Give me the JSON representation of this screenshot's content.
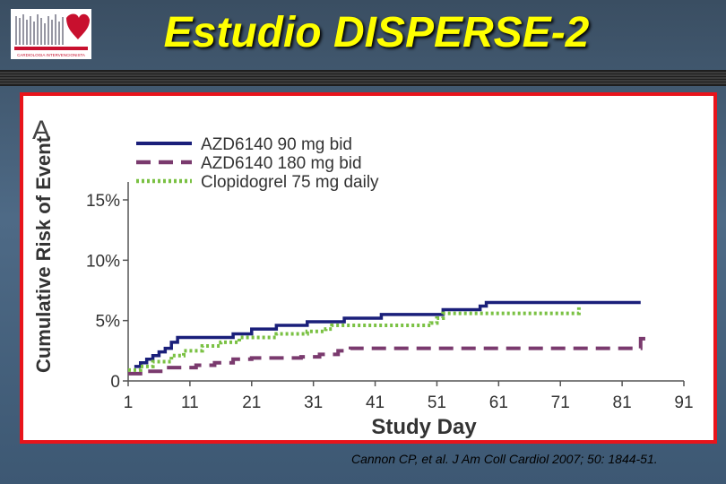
{
  "slide": {
    "title": "Estudio DISPERSE-2",
    "citation": "Cannon CP, et al. J Am Coll Cardiol 2007; 50: 1844-51."
  },
  "logo": {
    "name": "hospital-logo-icon",
    "small_text": "CARDIOLOGIA INTERVENCIONISTA"
  },
  "colors": {
    "title": "#ffff00",
    "frame_border": "#e8141b",
    "series_1": "#1a1f7a",
    "series_2": "#7a3a6e",
    "series_3": "#7ac143"
  },
  "chart_data": {
    "type": "line",
    "panel_label": "A",
    "xlabel": "Study Day",
    "ylabel": "Cumulative Risk of Event",
    "xlim": [
      1,
      91
    ],
    "ylim": [
      0,
      15
    ],
    "x_ticks": [
      1,
      11,
      21,
      31,
      41,
      51,
      61,
      71,
      81,
      91
    ],
    "y_ticks": [
      0,
      5,
      10,
      15
    ],
    "y_tick_labels": [
      "0",
      "5%",
      "10%",
      "15%"
    ],
    "legend_position": "top-left",
    "step": true,
    "series": [
      {
        "name": "AZD6140 90 mg bid",
        "color": "#1a1f7a",
        "dash": "solid",
        "points": [
          [
            2,
            1.2
          ],
          [
            3,
            1.5
          ],
          [
            4,
            1.8
          ],
          [
            5,
            2.1
          ],
          [
            6,
            2.4
          ],
          [
            7,
            2.7
          ],
          [
            8,
            3.2
          ],
          [
            9,
            3.6
          ],
          [
            18,
            3.9
          ],
          [
            21,
            4.3
          ],
          [
            25,
            4.6
          ],
          [
            30,
            4.9
          ],
          [
            36,
            5.2
          ],
          [
            42,
            5.5
          ],
          [
            52,
            5.9
          ],
          [
            58,
            6.2
          ],
          [
            59,
            6.5
          ],
          [
            84,
            6.5
          ]
        ]
      },
      {
        "name": "AZD6140 180 mg bid",
        "color": "#7a3a6e",
        "dash": "dash",
        "points": [
          [
            1,
            0.6
          ],
          [
            3,
            0.8
          ],
          [
            7,
            1.1
          ],
          [
            12,
            1.3
          ],
          [
            15,
            1.5
          ],
          [
            18,
            1.8
          ],
          [
            21,
            1.9
          ],
          [
            29,
            2.0
          ],
          [
            32,
            2.2
          ],
          [
            35,
            2.5
          ],
          [
            37,
            2.7
          ],
          [
            83,
            2.7
          ],
          [
            84,
            3.5
          ],
          [
            85,
            3.6
          ]
        ]
      },
      {
        "name": "Clopidogrel 75 mg daily",
        "color": "#7ac143",
        "dash": "dot",
        "points": [
          [
            1,
            0.9
          ],
          [
            3,
            1.2
          ],
          [
            5,
            1.6
          ],
          [
            8,
            2.1
          ],
          [
            10,
            2.5
          ],
          [
            13,
            2.9
          ],
          [
            16,
            3.2
          ],
          [
            19,
            3.6
          ],
          [
            25,
            3.9
          ],
          [
            30,
            4.1
          ],
          [
            33,
            4.3
          ],
          [
            34,
            4.6
          ],
          [
            50,
            4.8
          ],
          [
            51,
            5.2
          ],
          [
            52,
            5.6
          ],
          [
            73,
            5.6
          ],
          [
            74,
            6.1
          ]
        ]
      }
    ]
  }
}
